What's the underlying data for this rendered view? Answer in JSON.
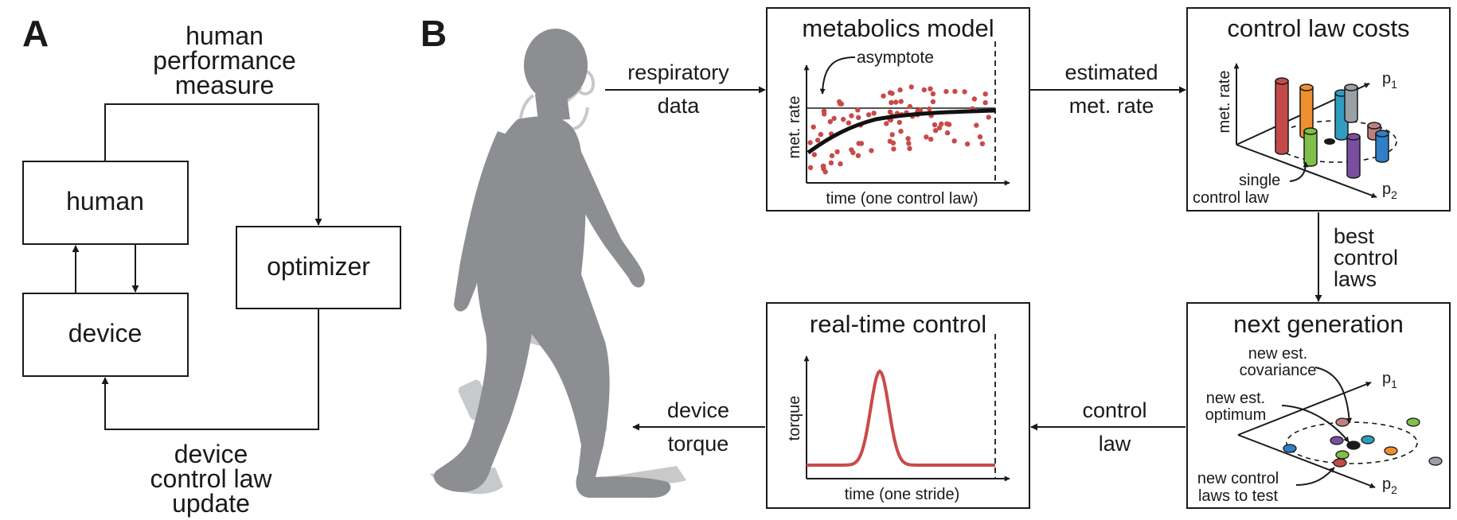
{
  "panel_a": {
    "letter": "A",
    "human_performance_measure": [
      "human",
      "performance",
      "measure"
    ],
    "human": "human",
    "device": "device",
    "optimizer": "optimizer",
    "device_control_law_update": [
      "device",
      "control law",
      "update"
    ]
  },
  "panel_b": {
    "letter": "B",
    "respiratory_data": [
      "respiratory",
      "data"
    ],
    "estimated_met_rate": [
      "estimated",
      "met. rate"
    ],
    "best_control_laws": [
      "best",
      "control",
      "laws"
    ],
    "control_law": [
      "control",
      "law"
    ],
    "device_torque": [
      "device",
      "torque"
    ],
    "metabolics_model": {
      "title": "metabolics model",
      "annotation": "asymptote",
      "ylabel": "met. rate",
      "xlabel": "time (one control law)"
    },
    "control_law_costs": {
      "title": "control law costs",
      "ylabel": "met. rate",
      "p1": "p",
      "p1_sub": "1",
      "p2": "p",
      "p2_sub": "2",
      "annotation": [
        "single",
        "control law"
      ]
    },
    "next_generation": {
      "title": "next generation",
      "covariance": [
        "new est.",
        "covariance"
      ],
      "optimum": [
        "new est.",
        "optimum"
      ],
      "to_test": [
        "new control",
        "laws to test"
      ],
      "p1": "p",
      "p1_sub": "1",
      "p2": "p",
      "p2_sub": "2"
    },
    "real_time_control": {
      "title": "real-time control",
      "ylabel": "torque",
      "xlabel": "time (one stride)"
    }
  },
  "colors": {
    "dots": "#c94a4a",
    "torque_curve": "#c94a4a",
    "silhouette": "#8c8e91",
    "exo_parts": "#c8c9cb"
  }
}
